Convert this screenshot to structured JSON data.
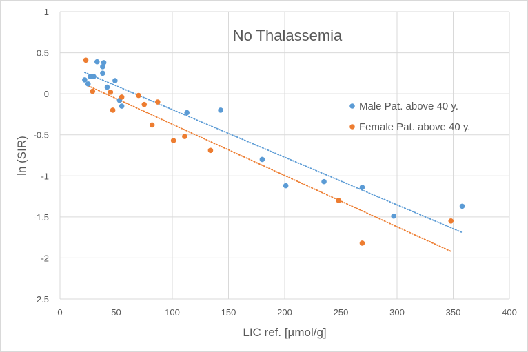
{
  "chart_data": {
    "type": "scatter",
    "title": "No Thalassemia",
    "xlabel": "LIC ref. [µmol/g]",
    "ylabel": "ln (SIR)",
    "xlim": [
      0,
      400
    ],
    "ylim": [
      -2.5,
      1
    ],
    "x_ticks": [
      0,
      50,
      100,
      150,
      200,
      250,
      300,
      350,
      400
    ],
    "y_ticks": [
      1,
      0.5,
      0,
      -0.5,
      -1,
      -1.5,
      -2,
      -2.5
    ],
    "x_tick_labels": [
      "0",
      "50",
      "100",
      "150",
      "200",
      "250",
      "300",
      "350",
      "400"
    ],
    "y_tick_labels": [
      "1",
      "0.5",
      "0",
      "-0.5",
      "-1",
      "-1.5",
      "-2",
      "-2.5"
    ],
    "grid": true,
    "legend_position": "right",
    "series": [
      {
        "name": "Male Pat. above 40 y.",
        "color": "#5b9bd5",
        "points": [
          [
            22,
            0.17
          ],
          [
            25,
            0.12
          ],
          [
            27,
            0.21
          ],
          [
            30,
            0.21
          ],
          [
            33,
            0.39
          ],
          [
            38,
            0.33
          ],
          [
            38,
            0.25
          ],
          [
            39,
            0.38
          ],
          [
            42,
            0.08
          ],
          [
            49,
            0.16
          ],
          [
            53,
            -0.08
          ],
          [
            55,
            -0.15
          ],
          [
            113,
            -0.23
          ],
          [
            143,
            -0.2
          ],
          [
            180,
            -0.8
          ],
          [
            201,
            -1.12
          ],
          [
            235,
            -1.07
          ],
          [
            269,
            -1.14
          ],
          [
            297,
            -1.49
          ],
          [
            358,
            -1.37
          ]
        ],
        "trendline": {
          "x": [
            22,
            358
          ],
          "y": [
            0.26,
            -1.69
          ],
          "style": "dotted"
        }
      },
      {
        "name": "Female Pat. above 40 y.",
        "color": "#ed7d31",
        "points": [
          [
            23,
            0.41
          ],
          [
            29,
            0.03
          ],
          [
            45,
            0.02
          ],
          [
            47,
            -0.2
          ],
          [
            55,
            -0.04
          ],
          [
            70,
            -0.02
          ],
          [
            75,
            -0.13
          ],
          [
            82,
            -0.38
          ],
          [
            87,
            -0.1
          ],
          [
            101,
            -0.57
          ],
          [
            111,
            -0.52
          ],
          [
            134,
            -0.69
          ],
          [
            248,
            -1.3
          ],
          [
            269,
            -1.82
          ],
          [
            348,
            -1.55
          ]
        ],
        "trendline": {
          "x": [
            23,
            348
          ],
          "y": [
            0.11,
            -1.92
          ],
          "style": "dotted"
        }
      }
    ]
  }
}
